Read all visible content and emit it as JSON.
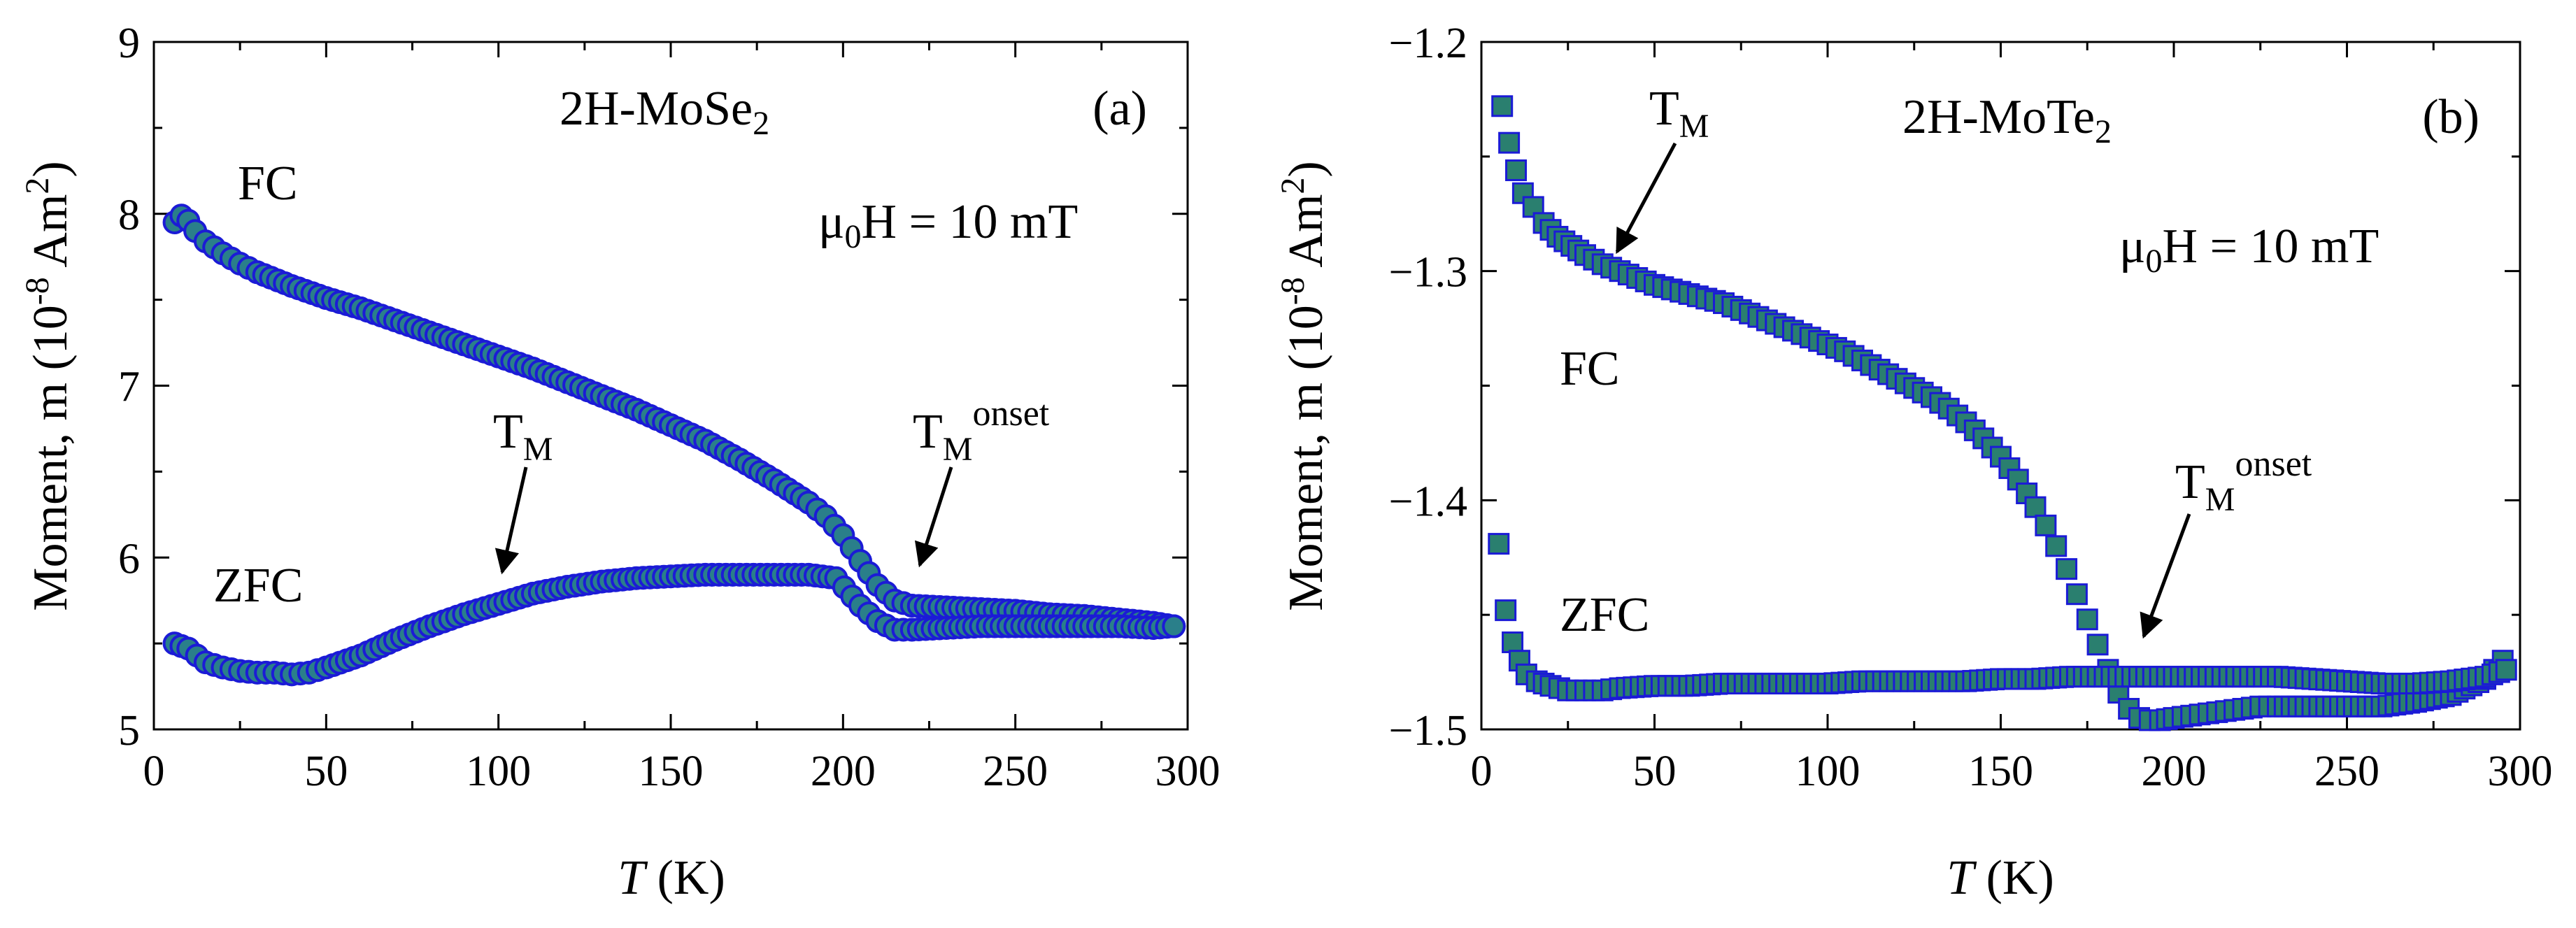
{
  "chart_data": [
    {
      "type": "scatter",
      "panel_label": "(a)",
      "sample_base": "2H-MoSe",
      "sample_sub": "2",
      "field_prefix": "μ",
      "field_sub": "0",
      "field_suffix": "H = 10 mT",
      "xlabel_italic": "T",
      "xlabel_rest": " (K)",
      "ylabel_main": "Moment, m (10",
      "ylabel_exp": "-8",
      "ylabel_unit": " Am",
      "ylabel_unit_exp": "2",
      "ylabel_close": ")",
      "xlim": [
        0,
        300
      ],
      "ylim": [
        5,
        9
      ],
      "xticks": [
        "0",
        "50",
        "100",
        "150",
        "200",
        "250",
        "300"
      ],
      "yticks": [
        "5",
        "6",
        "7",
        "8",
        "9"
      ],
      "marker": "circle",
      "colors": {
        "fill": "#2a7f8a",
        "edge": "#1b1bd6"
      },
      "series": [
        {
          "name": "FC",
          "x": [
            6,
            8,
            10,
            12,
            15,
            20,
            25,
            30,
            40,
            50,
            60,
            70,
            80,
            90,
            100,
            110,
            120,
            130,
            140,
            150,
            160,
            170,
            180,
            190,
            195,
            200,
            205,
            210,
            215,
            220,
            230,
            240,
            250,
            260,
            270,
            280,
            290,
            296
          ],
          "y": [
            7.95,
            7.99,
            7.96,
            7.9,
            7.84,
            7.77,
            7.71,
            7.66,
            7.58,
            7.51,
            7.45,
            7.38,
            7.31,
            7.24,
            7.17,
            7.1,
            7.02,
            6.94,
            6.86,
            6.77,
            6.68,
            6.57,
            6.45,
            6.32,
            6.24,
            6.13,
            5.98,
            5.84,
            5.75,
            5.72,
            5.71,
            5.7,
            5.69,
            5.67,
            5.66,
            5.64,
            5.62,
            5.6
          ]
        },
        {
          "name": "ZFC",
          "x": [
            6,
            10,
            15,
            20,
            25,
            30,
            35,
            40,
            45,
            50,
            60,
            70,
            80,
            90,
            100,
            110,
            120,
            130,
            140,
            150,
            160,
            170,
            180,
            190,
            198,
            205,
            210,
            215,
            220,
            230,
            240,
            250,
            260,
            270,
            280,
            290,
            296
          ],
          "y": [
            5.5,
            5.47,
            5.39,
            5.36,
            5.34,
            5.33,
            5.33,
            5.32,
            5.33,
            5.36,
            5.43,
            5.52,
            5.6,
            5.67,
            5.73,
            5.79,
            5.83,
            5.86,
            5.88,
            5.89,
            5.9,
            5.9,
            5.9,
            5.9,
            5.88,
            5.72,
            5.63,
            5.58,
            5.58,
            5.59,
            5.6,
            5.6,
            5.6,
            5.6,
            5.6,
            5.59,
            5.6
          ]
        }
      ],
      "annotations": [
        {
          "text": "FC",
          "type": "label",
          "x": 35,
          "y": 8.0
        },
        {
          "text": "ZFC",
          "type": "label",
          "x": 35,
          "y": 5.65
        },
        {
          "text_base": "T",
          "text_sub": "M",
          "text_sup": "",
          "x": 110,
          "y": 6.55,
          "arrow_from": [
            109,
            6.45
          ],
          "arrow_to": [
            100,
            5.85
          ]
        },
        {
          "text_base": "T",
          "text_sub": "M",
          "text_sup": "onset",
          "x": 225,
          "y": 6.6,
          "arrow_from": [
            232,
            6.48
          ],
          "arrow_to": [
            221,
            5.9
          ]
        }
      ]
    },
    {
      "type": "scatter",
      "panel_label": "(b)",
      "sample_base": "2H-MoTe",
      "sample_sub": "2",
      "field_prefix": "μ",
      "field_sub": "0",
      "field_suffix": "H = 10 mT",
      "xlabel_italic": "T",
      "xlabel_rest": " (K)",
      "ylabel_main": "Moment, m (10",
      "ylabel_exp": "-8",
      "ylabel_unit": " Am",
      "ylabel_unit_exp": "2",
      "ylabel_close": ")",
      "xlim": [
        0,
        300
      ],
      "ylim": [
        -1.5,
        -1.2
      ],
      "xticks": [
        "0",
        "50",
        "100",
        "150",
        "200",
        "250",
        "300"
      ],
      "yticks": [
        "−1.5",
        "−1.4",
        "−1.3",
        "−1.2"
      ],
      "marker": "square",
      "colors": {
        "fill": "#2a7f6f",
        "edge": "#1b1bd6"
      },
      "series": [
        {
          "name": "FC",
          "x": [
            6,
            8,
            10,
            12,
            15,
            18,
            22,
            26,
            30,
            35,
            40,
            45,
            50,
            55,
            60,
            65,
            70,
            75,
            80,
            85,
            90,
            95,
            100,
            105,
            110,
            115,
            120,
            125,
            130,
            135,
            140,
            145,
            150,
            155,
            160,
            163,
            166,
            169,
            172,
            175,
            178,
            181,
            184,
            187,
            190,
            193,
            196,
            200,
            205,
            210,
            215,
            220,
            225,
            230,
            240,
            250,
            260,
            270,
            280,
            290,
            295
          ],
          "y": [
            -1.228,
            -1.244,
            -1.256,
            -1.266,
            -1.272,
            -1.279,
            -1.285,
            -1.289,
            -1.293,
            -1.297,
            -1.3,
            -1.303,
            -1.306,
            -1.308,
            -1.31,
            -1.312,
            -1.314,
            -1.317,
            -1.32,
            -1.323,
            -1.326,
            -1.329,
            -1.332,
            -1.335,
            -1.339,
            -1.343,
            -1.347,
            -1.351,
            -1.355,
            -1.36,
            -1.366,
            -1.373,
            -1.381,
            -1.391,
            -1.403,
            -1.411,
            -1.42,
            -1.43,
            -1.441,
            -1.452,
            -1.463,
            -1.474,
            -1.484,
            -1.491,
            -1.495,
            -1.496,
            -1.496,
            -1.495,
            -1.494,
            -1.493,
            -1.492,
            -1.491,
            -1.49,
            -1.49,
            -1.49,
            -1.49,
            -1.49,
            -1.488,
            -1.485,
            -1.478,
            -1.47
          ]
        },
        {
          "name": "ZFC",
          "x": [
            5,
            7,
            9,
            11,
            13,
            16,
            20,
            25,
            30,
            35,
            40,
            50,
            60,
            70,
            80,
            90,
            100,
            110,
            120,
            130,
            140,
            150,
            160,
            170,
            180,
            190,
            200,
            210,
            220,
            230,
            240,
            250,
            260,
            270,
            280,
            290,
            296
          ],
          "y": [
            -1.419,
            -1.448,
            -1.462,
            -1.47,
            -1.476,
            -1.479,
            -1.481,
            -1.483,
            -1.483,
            -1.483,
            -1.482,
            -1.481,
            -1.481,
            -1.48,
            -1.48,
            -1.48,
            -1.48,
            -1.479,
            -1.479,
            -1.479,
            -1.479,
            -1.478,
            -1.478,
            -1.477,
            -1.477,
            -1.477,
            -1.477,
            -1.477,
            -1.477,
            -1.477,
            -1.478,
            -1.479,
            -1.48,
            -1.48,
            -1.479,
            -1.477,
            -1.474
          ]
        }
      ],
      "annotations": [
        {
          "text": "FC",
          "type": "label",
          "x": 30,
          "y": -1.344
        },
        {
          "text": "ZFC",
          "type": "label",
          "x": 35,
          "y": -1.454
        },
        {
          "text_base": "T",
          "text_sub": "M",
          "text_sup": "",
          "x": 62,
          "y": -1.234,
          "arrow_from": [
            56,
            -1.245
          ],
          "arrow_to": [
            40,
            -1.295
          ]
        },
        {
          "text_base": "T",
          "text_sub": "M",
          "text_sup": "onset",
          "x": 237,
          "y": -1.424,
          "arrow_from": [
            216,
            -1.434
          ],
          "arrow_to": [
            193,
            -1.467
          ]
        }
      ]
    }
  ]
}
